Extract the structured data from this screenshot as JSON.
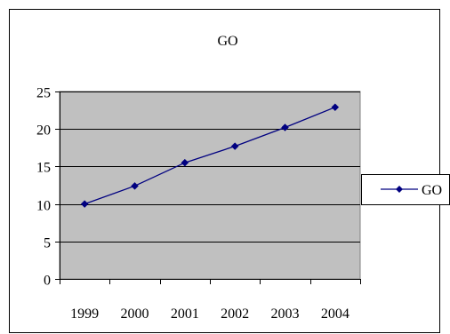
{
  "chart_data": {
    "type": "line",
    "title": "GO",
    "xlabel": "",
    "ylabel": "",
    "categories": [
      "1999",
      "2000",
      "2001",
      "2002",
      "2003",
      "2004"
    ],
    "series": [
      {
        "name": "GO",
        "values": [
          10,
          12.4,
          15.5,
          17.7,
          20.2,
          22.9
        ],
        "color": "#000080"
      }
    ],
    "ylim": [
      0,
      25
    ],
    "yticks": [
      0,
      5,
      10,
      15,
      20,
      25
    ],
    "grid": true,
    "legend": "right",
    "plot_background": "#c0c0c0"
  }
}
